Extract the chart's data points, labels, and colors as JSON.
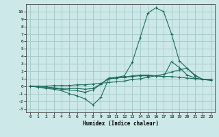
{
  "xlabel": "Humidex (Indice chaleur)",
  "background_color": "#cce8e8",
  "grid_color": "#aacccc",
  "line_color": "#1a6b5a",
  "xlim": [
    -0.5,
    23.5
  ],
  "ylim": [
    -3.5,
    11.0
  ],
  "xticks": [
    0,
    1,
    2,
    3,
    4,
    5,
    6,
    7,
    8,
    9,
    10,
    11,
    12,
    13,
    14,
    15,
    16,
    17,
    18,
    19,
    20,
    21,
    22,
    23
  ],
  "yticks": [
    -3,
    -2,
    -1,
    0,
    1,
    2,
    3,
    4,
    5,
    6,
    7,
    8,
    9,
    10
  ],
  "series": [
    [
      0.0,
      -0.1,
      -0.3,
      -0.4,
      -0.6,
      -1.0,
      -1.3,
      -1.7,
      -2.5,
      -1.5,
      1.0,
      1.1,
      1.2,
      1.3,
      1.4,
      1.4,
      1.4,
      1.3,
      1.3,
      1.2,
      1.1,
      1.0,
      0.9,
      0.8
    ],
    [
      0.0,
      -0.1,
      -0.1,
      -0.3,
      -0.4,
      -0.5,
      -0.6,
      -0.8,
      -0.5,
      0.3,
      1.0,
      1.1,
      1.2,
      1.4,
      1.5,
      1.5,
      1.4,
      1.3,
      3.3,
      2.5,
      1.5,
      1.1,
      0.9,
      0.9
    ],
    [
      0.0,
      -0.1,
      -0.1,
      -0.2,
      -0.3,
      -0.3,
      -0.3,
      -0.4,
      -0.3,
      0.3,
      1.1,
      1.2,
      1.4,
      3.2,
      6.5,
      9.8,
      10.5,
      10.0,
      7.0,
      3.4,
      2.4,
      1.5,
      0.9,
      0.9
    ],
    [
      0.0,
      0.0,
      0.0,
      0.1,
      0.1,
      0.1,
      0.2,
      0.2,
      0.3,
      0.4,
      0.5,
      0.6,
      0.7,
      0.9,
      1.0,
      1.2,
      1.4,
      1.6,
      1.9,
      2.2,
      2.4,
      1.4,
      0.9,
      0.8
    ]
  ]
}
